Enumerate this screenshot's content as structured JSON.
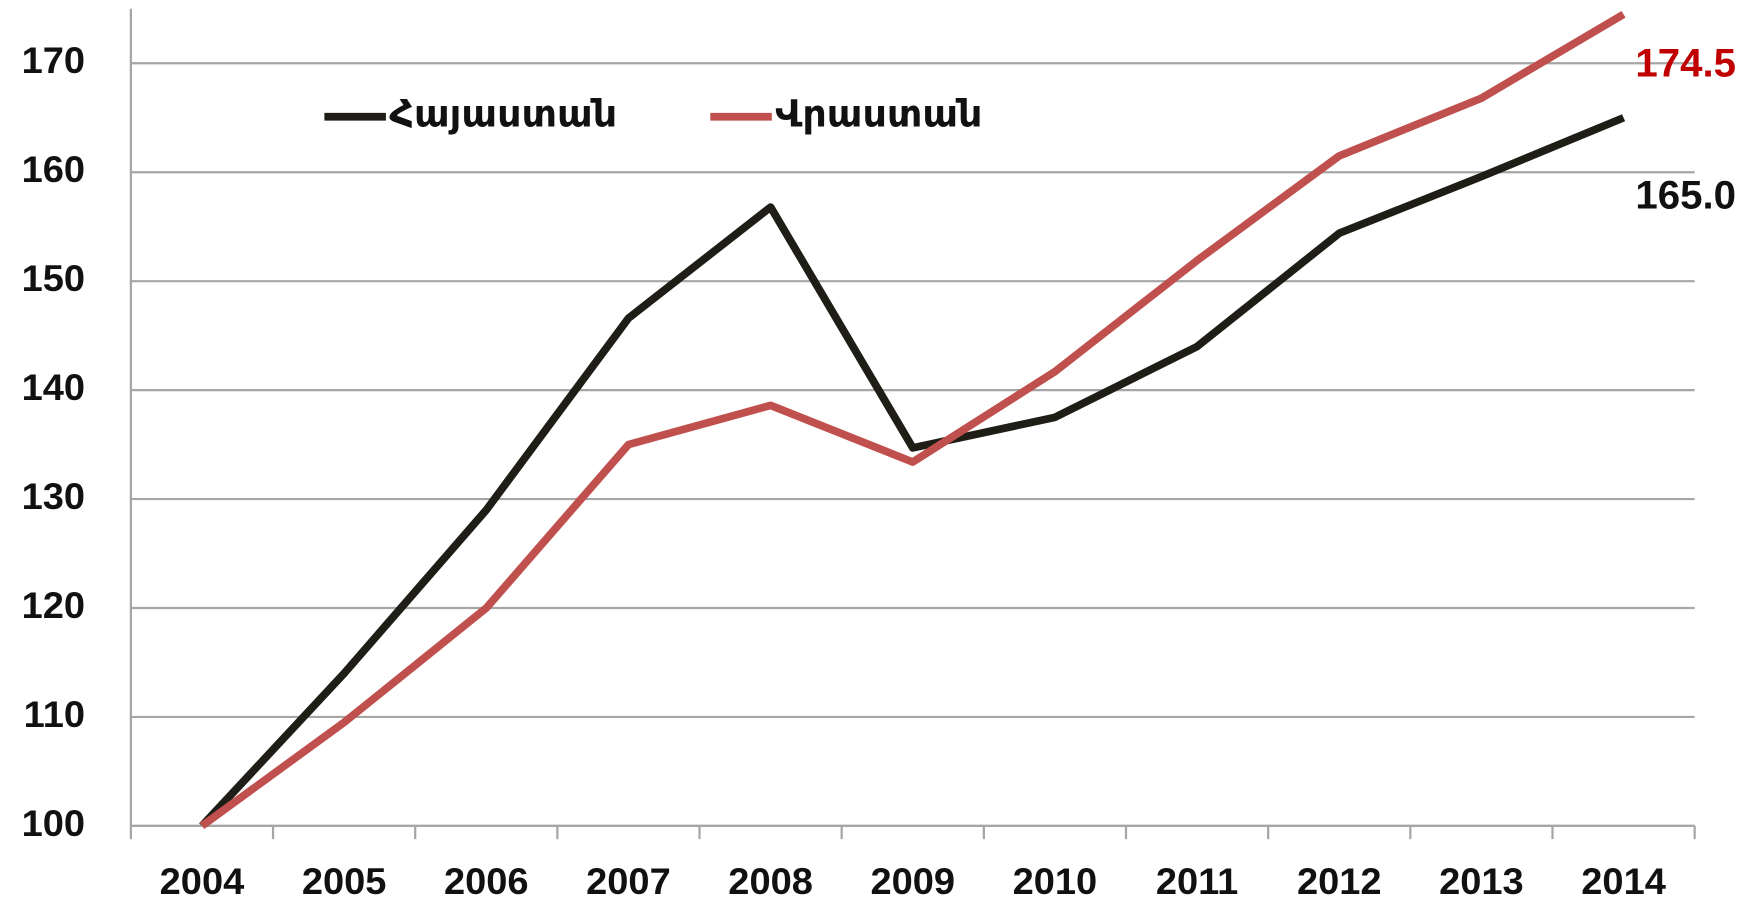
{
  "chart_data": {
    "type": "line",
    "categories": [
      "2004",
      "2005",
      "2006",
      "2007",
      "2008",
      "2009",
      "2010",
      "2011",
      "2012",
      "2013",
      "2014"
    ],
    "series": [
      {
        "name": "Հայաստան",
        "color": "#1f1e16",
        "values": [
          100,
          114,
          129,
          146.6,
          156.8,
          134.7,
          137.5,
          144,
          154.4,
          159.6,
          165
        ],
        "value_labels": [
          null,
          null,
          null,
          null,
          null,
          null,
          null,
          null,
          null,
          null,
          "165.0"
        ],
        "label_color": "#111111"
      },
      {
        "name": "Վրաստան",
        "color": "#c0504d",
        "values": [
          100,
          109.5,
          120,
          135,
          138.6,
          133.4,
          141.7,
          151.9,
          161.5,
          166.8,
          174.5
        ],
        "value_labels": [
          null,
          null,
          null,
          null,
          null,
          null,
          null,
          null,
          null,
          null,
          "174.5"
        ],
        "label_color": "#c00000"
      }
    ],
    "ylim": [
      100,
      175
    ],
    "yticks": [
      100,
      110,
      120,
      130,
      140,
      150,
      160,
      170
    ],
    "grid": true,
    "legend": "top-left"
  }
}
